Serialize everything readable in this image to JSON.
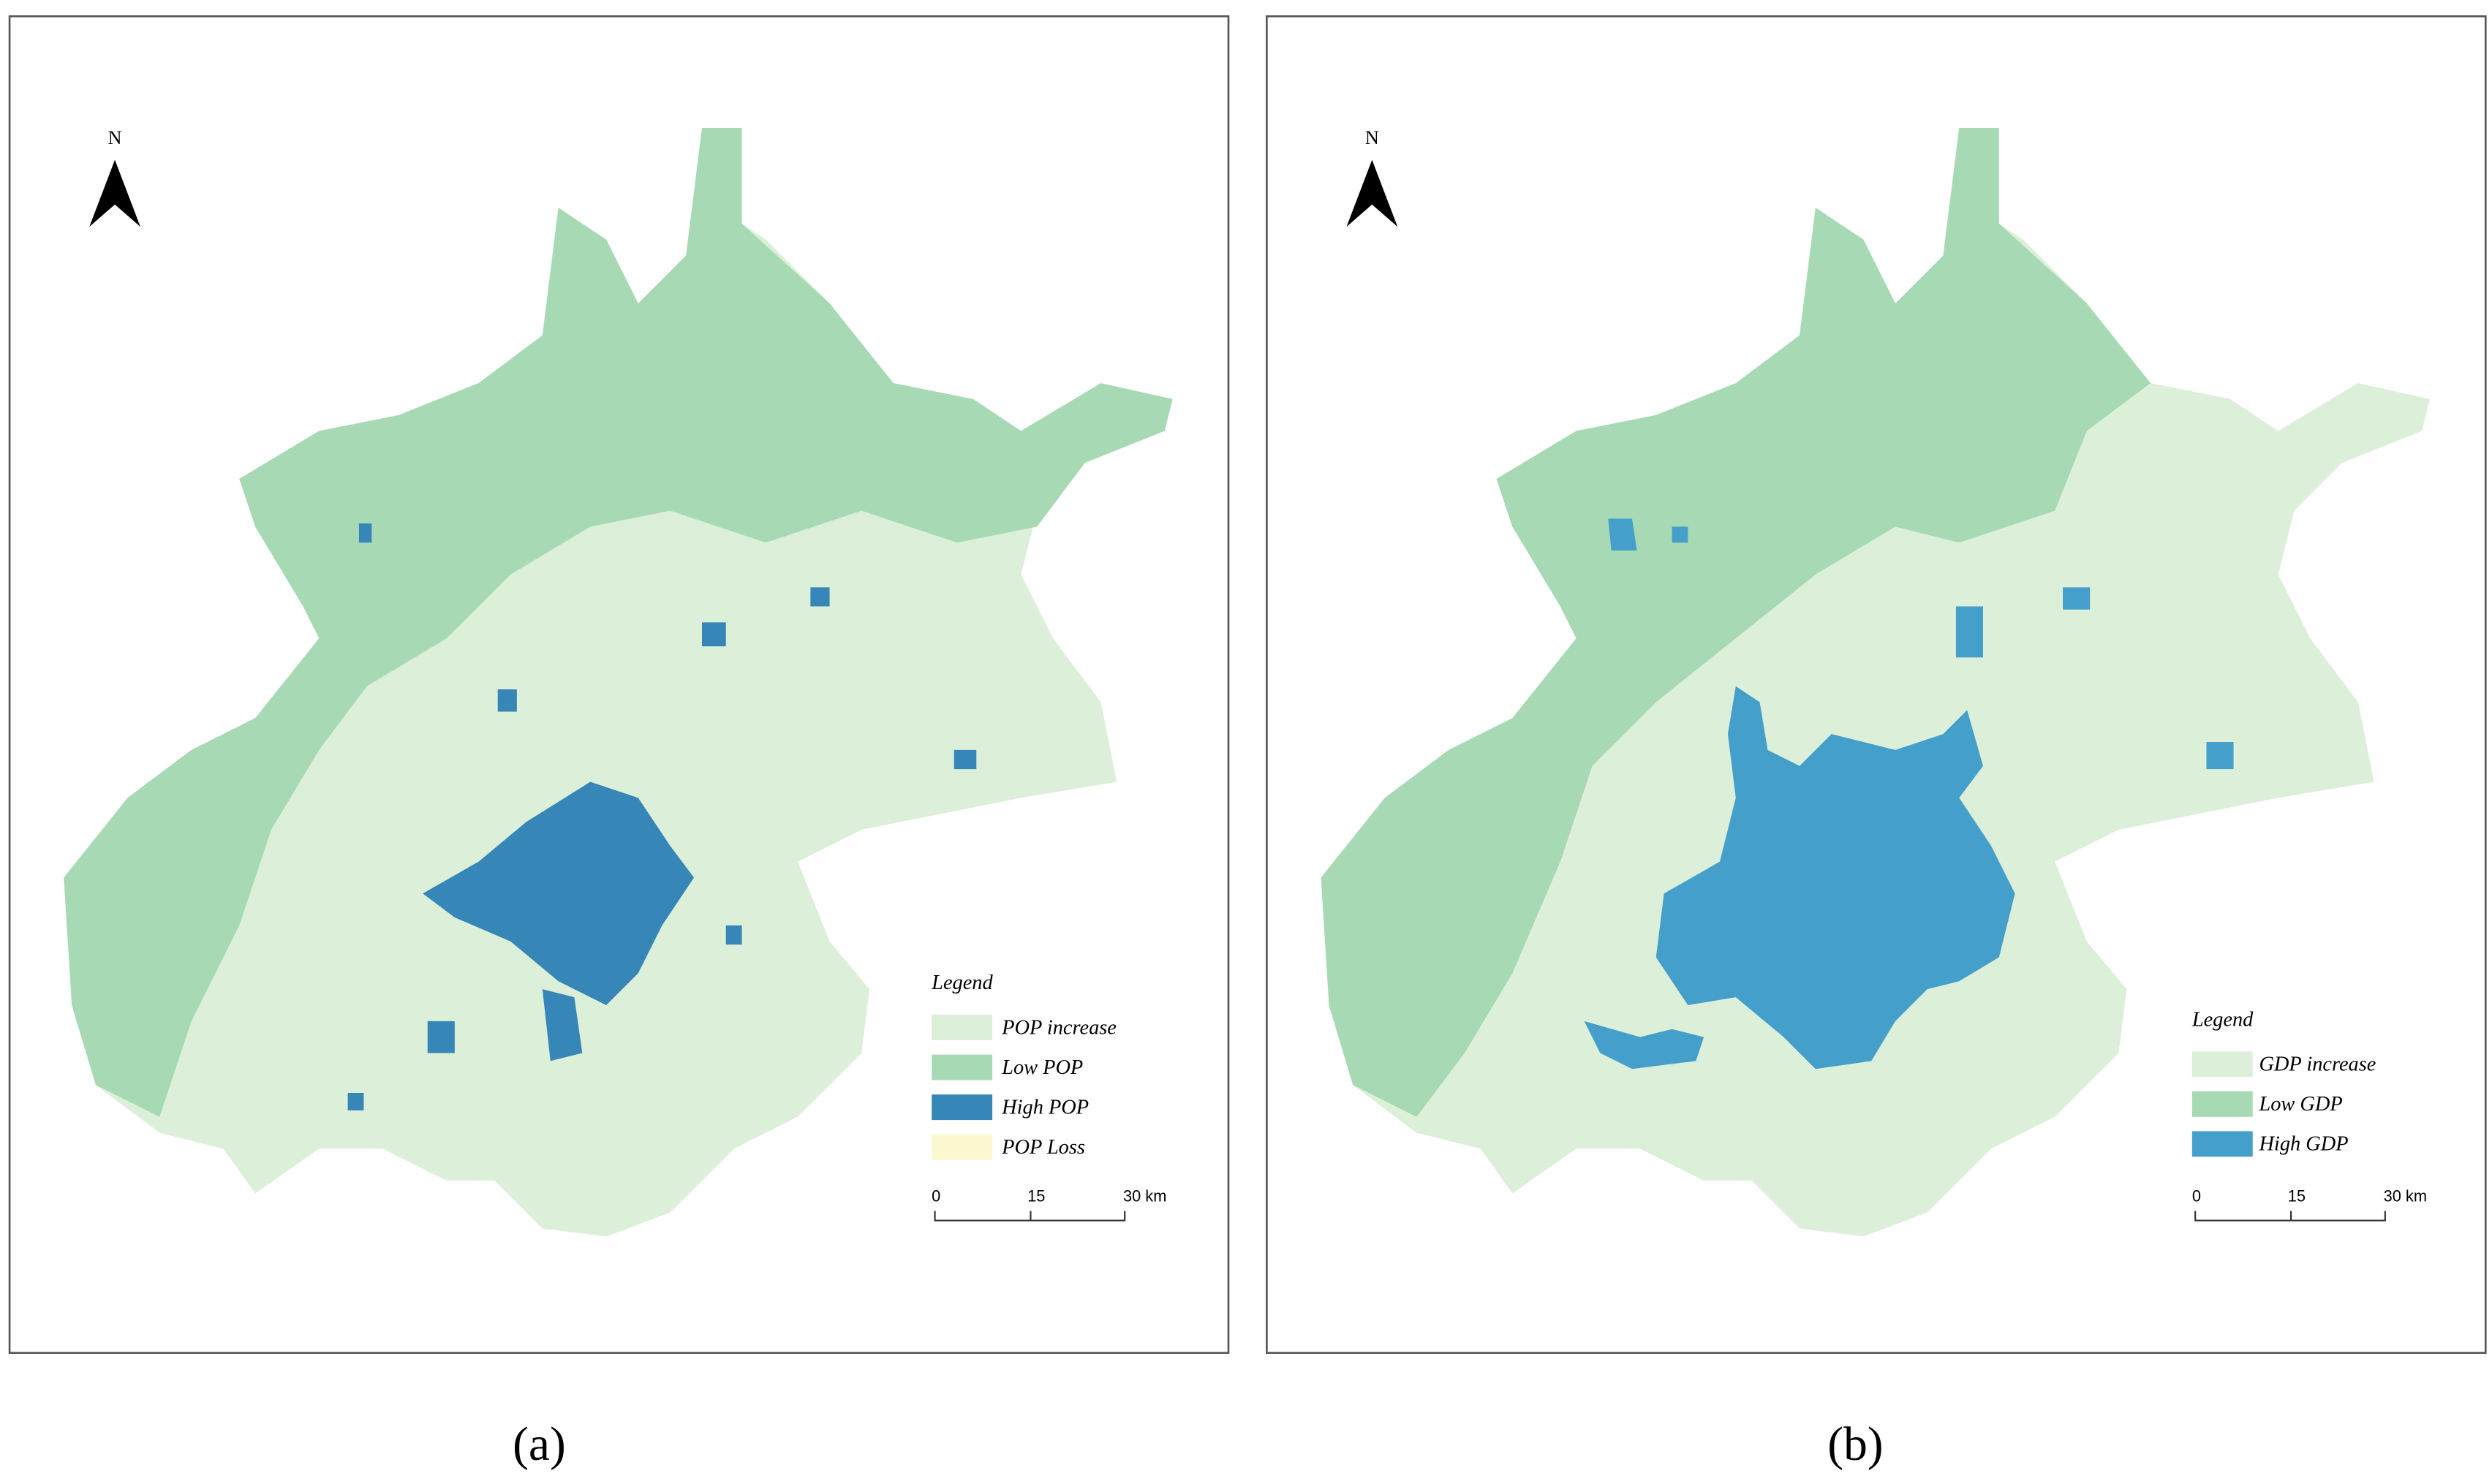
{
  "panels": [
    {
      "caption": "(a)",
      "north": "N",
      "legend_title": "Legend",
      "legend": [
        {
          "label": "POP increase",
          "color": "#dcefd9"
        },
        {
          "label": "Low POP",
          "color": "#a6d9b4"
        },
        {
          "label": "High POP",
          "color": "#3786b8"
        },
        {
          "label": "POP Loss",
          "color": "#fbf8cf"
        }
      ],
      "scale_labels": [
        "0",
        "15",
        "30 km"
      ]
    },
    {
      "caption": "(b)",
      "north": "N",
      "legend_title": "Legend",
      "legend": [
        {
          "label": "GDP increase",
          "color": "#dcefd9"
        },
        {
          "label": "Low GDP",
          "color": "#a6d9b4"
        },
        {
          "label": "High GDP",
          "color": "#459fcb"
        }
      ],
      "scale_labels": [
        "0",
        "15",
        "30 km"
      ]
    }
  ]
}
